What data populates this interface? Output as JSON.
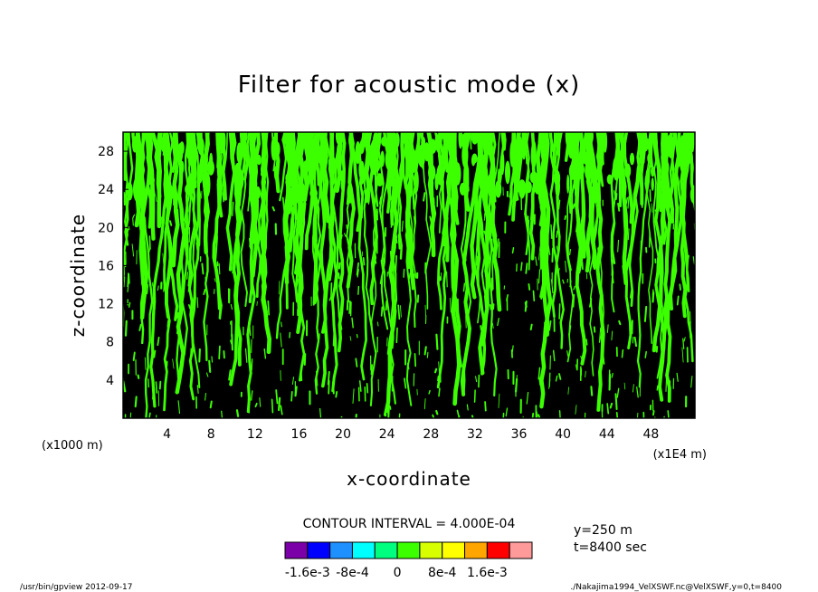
{
  "chart_data": {
    "type": "heatmap",
    "title": "Filter for acoustic mode (x)",
    "xlabel": "x-coordinate",
    "ylabel": "z-coordinate",
    "x_unit_left": "(x1000 m)",
    "x_unit_right": "(x1E4 m)",
    "xlim": [
      0,
      52
    ],
    "ylim": [
      0,
      30
    ],
    "x_ticks": [
      4,
      8,
      12,
      16,
      20,
      24,
      28,
      32,
      36,
      40,
      44,
      48
    ],
    "y_ticks": [
      4,
      8,
      12,
      16,
      20,
      24,
      28
    ],
    "contour_interval_text": "CONTOUR INTERVAL = 4.000E-04",
    "annotation_lines": [
      "y=250 m",
      "t=8400 sec"
    ],
    "colorbar": {
      "colors": [
        "#7b00a8",
        "#0000ff",
        "#1e90ff",
        "#00ffff",
        "#00ff7f",
        "#3cff00",
        "#d8ff00",
        "#ffff00",
        "#ffa500",
        "#ff0000",
        "#ff9a9a"
      ],
      "tick_labels": [
        "-1.6e-3",
        "-8e-4",
        "0",
        "8e-4",
        "1.6e-3"
      ],
      "tick_values": [
        -0.0016,
        -0.0008,
        0,
        0.0008,
        0.0016
      ],
      "range": [
        -0.002,
        0.0024
      ]
    },
    "field_colors": {
      "positive": "#3cff00",
      "negative": "#000000"
    },
    "grid": false
  },
  "footer": {
    "left": "/usr/bin/gpview   2012-09-17",
    "right": "./Nakajima1994_VelXSWF.nc@VelXSWF,y=0,t=8400"
  }
}
